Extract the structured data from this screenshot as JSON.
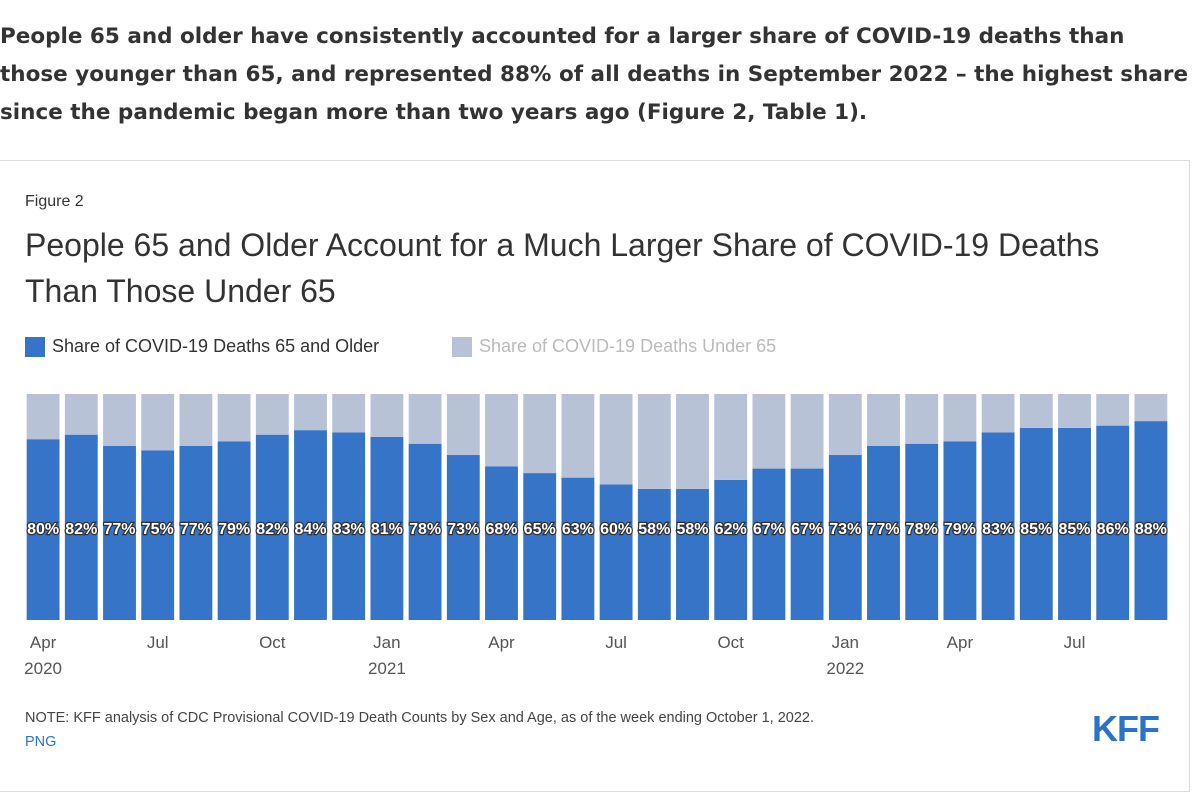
{
  "intro": "People 65 and older have consistently accounted for a larger share of COVID-19 deaths than those younger than 65, and represented 88% of all deaths in September 2022 – the highest share since the pandemic began more than two years ago (Figure 2, Table 1).",
  "chart_data": {
    "type": "stacked_bar",
    "figure_label": "Figure 2",
    "title": "People 65 and Older Account for a Much Larger Share of COVID-19 Deaths Than Those Under 65",
    "categories": [
      "Apr\n2020",
      null,
      null,
      "Jul",
      null,
      null,
      "Oct",
      null,
      null,
      "Jan\n2021",
      null,
      null,
      "Apr",
      null,
      null,
      "Jul",
      null,
      null,
      "Oct",
      null,
      null,
      "Jan\n2022",
      null,
      null,
      "Apr",
      null,
      null,
      "Jul",
      null,
      null
    ],
    "series": [
      {
        "name": "Share of COVID-19 Deaths 65 and Older",
        "color": "#3574c6",
        "values": [
          80,
          82,
          77,
          75,
          77,
          79,
          82,
          84,
          83,
          81,
          78,
          73,
          68,
          65,
          63,
          60,
          58,
          58,
          62,
          67,
          67,
          73,
          77,
          78,
          79,
          83,
          85,
          85,
          86,
          88
        ],
        "value_labels": [
          "80%",
          "82%",
          "77%",
          "75%",
          "77%",
          "79%",
          "82%",
          "84%",
          "83%",
          "81%",
          "78%",
          "73%",
          "68%",
          "65%",
          "63%",
          "60%",
          "58%",
          "58%",
          "62%",
          "67%",
          "67%",
          "73%",
          "77%",
          "78%",
          "79%",
          "83%",
          "85%",
          "85%",
          "86%",
          "88%"
        ]
      },
      {
        "name": "Share of COVID-19 Deaths Under 65",
        "color": "#b7c2d7",
        "values": [
          20,
          18,
          23,
          25,
          23,
          21,
          18,
          16,
          17,
          19,
          22,
          27,
          32,
          35,
          37,
          40,
          42,
          42,
          38,
          33,
          33,
          27,
          23,
          22,
          21,
          17,
          15,
          15,
          14,
          12
        ]
      }
    ],
    "ylim": [
      0,
      100
    ],
    "note": "NOTE: KFF analysis of CDC Provisional COVID-19 Death Counts by Sex and Age, as of the week ending October 1, 2022.",
    "download": "PNG",
    "logo": "KFF"
  }
}
